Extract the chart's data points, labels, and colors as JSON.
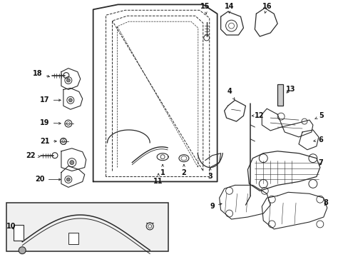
{
  "bg_color": "#ffffff",
  "fig_width": 4.89,
  "fig_height": 3.6,
  "dpi": 100,
  "line_color": "#2a2a2a",
  "label_font_size": 7.5,
  "callout_font_size": 7.0
}
